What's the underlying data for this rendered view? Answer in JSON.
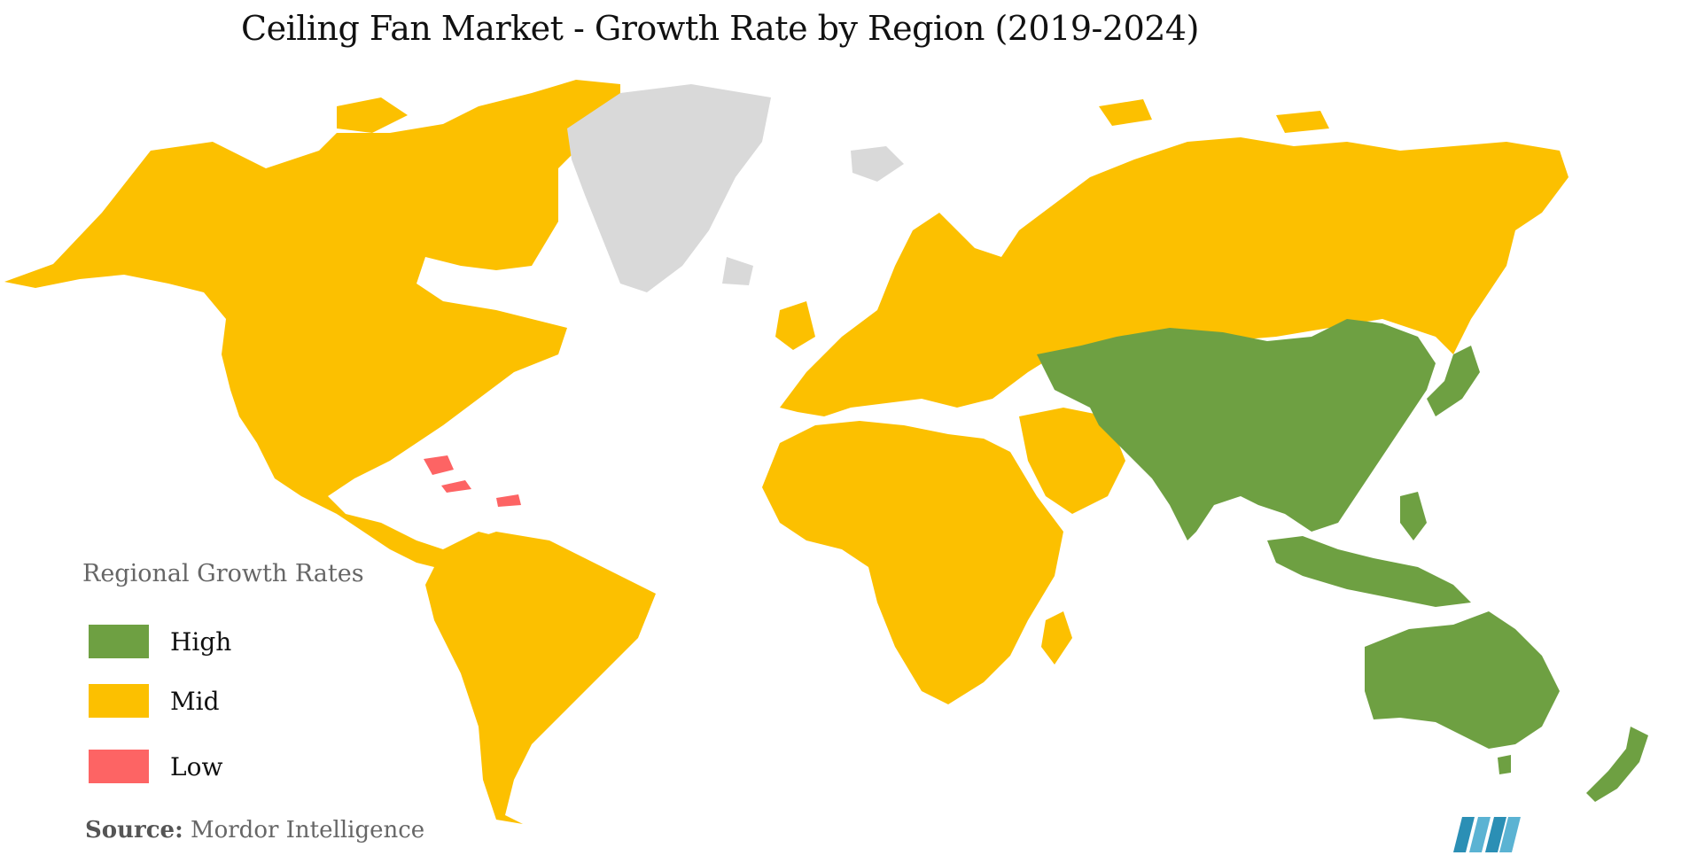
{
  "title": "Ceiling Fan Market  - Growth Rate by Region (2019-2024)",
  "legend": {
    "title": "Regional Growth Rates",
    "items": [
      {
        "label": "High",
        "color": "#6ea042"
      },
      {
        "label": "Mid",
        "color": "#fcc000"
      },
      {
        "label": "Low",
        "color": "#fd6464"
      }
    ]
  },
  "colors": {
    "no_data": "#d9d9d9"
  },
  "regions": [
    {
      "name": "North America",
      "category": "Mid"
    },
    {
      "name": "South America",
      "category": "Mid"
    },
    {
      "name": "Europe",
      "category": "Mid"
    },
    {
      "name": "Russia",
      "category": "Mid"
    },
    {
      "name": "Middle East",
      "category": "Mid"
    },
    {
      "name": "Africa",
      "category": "Mid"
    },
    {
      "name": "Asia-Pacific",
      "category": "High"
    },
    {
      "name": "Australia & New Zealand",
      "category": "High"
    },
    {
      "name": "Caribbean",
      "category": "Low"
    },
    {
      "name": "Greenland",
      "category": "No data"
    }
  ],
  "source": {
    "label": "Source:",
    "value": "Mordor Intelligence"
  },
  "logo": "mordor-intelligence-logo"
}
